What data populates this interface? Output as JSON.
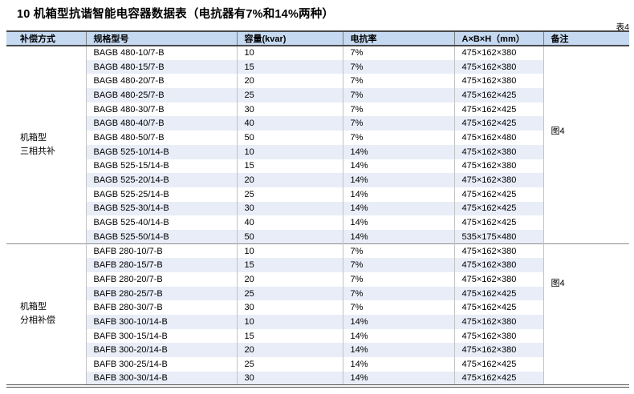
{
  "page": {
    "title": "10 机箱型抗谐智能电容器数据表（电抗器有7%和14%两种）",
    "table_label": "表4"
  },
  "colors": {
    "header_bg": "#c5d9f1",
    "stripe_bg": "#e9edf8",
    "border_dark": "#4a4a4a",
    "border_light": "#c2c2c2",
    "section_line": "#8c8c8c"
  },
  "table": {
    "headers": [
      "补偿方式",
      "规格型号",
      "容量(kvar)",
      "电抗率",
      "A×B×H（mm）",
      "备注"
    ],
    "sections": [
      {
        "mode_lines": [
          "机箱型",
          "三相共补"
        ],
        "remark": "图4",
        "rows": [
          [
            "BAGB 480-10/7-B",
            "10",
            "7%",
            "475×162×380"
          ],
          [
            "BAGB 480-15/7-B",
            "15",
            "7%",
            "475×162×380"
          ],
          [
            "BAGB 480-20/7-B",
            "20",
            "7%",
            "475×162×380"
          ],
          [
            "BAGB 480-25/7-B",
            "25",
            "7%",
            "475×162×425"
          ],
          [
            "BAGB 480-30/7-B",
            "30",
            "7%",
            "475×162×425"
          ],
          [
            "BAGB 480-40/7-B",
            "40",
            "7%",
            "475×162×425"
          ],
          [
            "BAGB 480-50/7-B",
            "50",
            "7%",
            "475×162×480"
          ],
          [
            "BAGB 525-10/14-B",
            "10",
            "14%",
            "475×162×380"
          ],
          [
            "BAGB 525-15/14-B",
            "15",
            "14%",
            "475×162×380"
          ],
          [
            "BAGB 525-20/14-B",
            "20",
            "14%",
            "475×162×380"
          ],
          [
            "BAGB 525-25/14-B",
            "25",
            "14%",
            "475×162×425"
          ],
          [
            "BAGB 525-30/14-B",
            "30",
            "14%",
            "475×162×425"
          ],
          [
            "BAGB 525-40/14-B",
            "40",
            "14%",
            "475×162×425"
          ],
          [
            "BAGB 525-50/14-B",
            "50",
            "14%",
            "535×175×480"
          ]
        ]
      },
      {
        "mode_lines": [
          "机箱型",
          "分相补偿"
        ],
        "remark": "图4",
        "rows": [
          [
            "BAFB 280-10/7-B",
            "10",
            "7%",
            "475×162×380"
          ],
          [
            "BAFB 280-15/7-B",
            "15",
            "7%",
            "475×162×380"
          ],
          [
            "BAFB 280-20/7-B",
            "20",
            "7%",
            "475×162×380"
          ],
          [
            "BAFB 280-25/7-B",
            "25",
            "7%",
            "475×162×425"
          ],
          [
            "BAFB 280-30/7-B",
            "30",
            "7%",
            "475×162×425"
          ],
          [
            "BAFB 300-10/14-B",
            "10",
            "14%",
            "475×162×380"
          ],
          [
            "BAFB 300-15/14-B",
            "15",
            "14%",
            "475×162×380"
          ],
          [
            "BAFB 300-20/14-B",
            "20",
            "14%",
            "475×162×380"
          ],
          [
            "BAFB 300-25/14-B",
            "25",
            "14%",
            "475×162×425"
          ],
          [
            "BAFB 300-30/14-B",
            "30",
            "14%",
            "475×162×425"
          ]
        ]
      }
    ]
  }
}
